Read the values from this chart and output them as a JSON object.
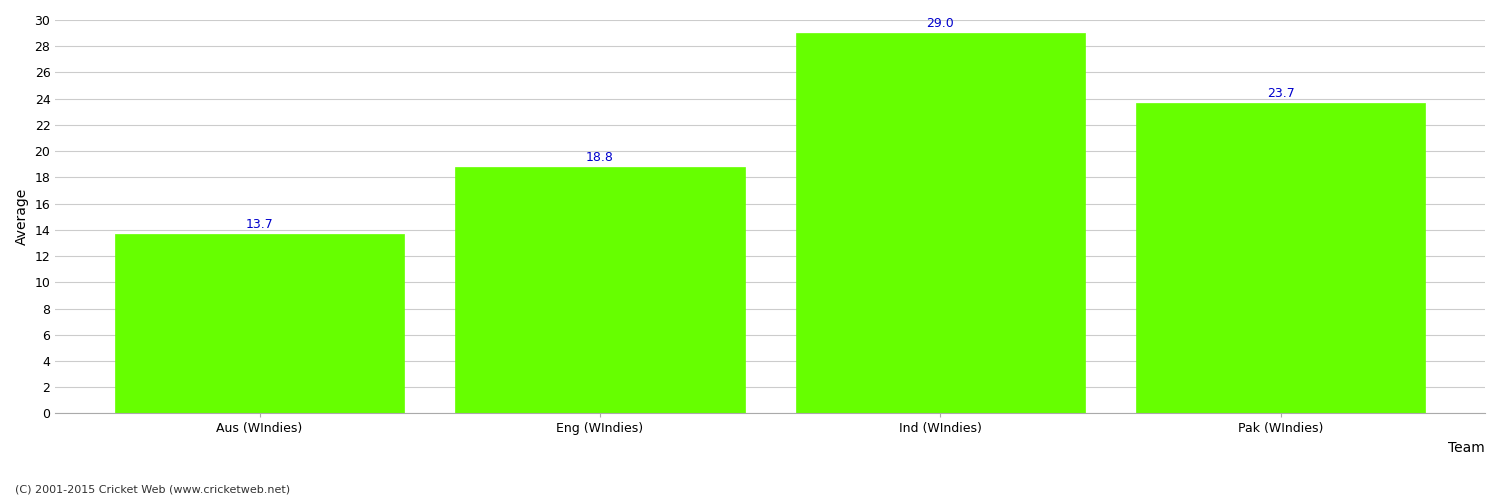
{
  "categories": [
    "Aus (WIndies)",
    "Eng (WIndies)",
    "Ind (WIndies)",
    "Pak (WIndies)"
  ],
  "values": [
    13.7,
    18.8,
    29.0,
    23.7
  ],
  "bar_color": "#66ff00",
  "bar_edge_color": "#66ff00",
  "value_color": "#0000cc",
  "xlabel": "Team",
  "ylabel": "Average",
  "ylim": [
    0,
    30
  ],
  "yticks": [
    0,
    2,
    4,
    6,
    8,
    10,
    12,
    14,
    16,
    18,
    20,
    22,
    24,
    26,
    28,
    30
  ],
  "grid_color": "#cccccc",
  "background_color": "#ffffff",
  "footer_text": "(C) 2001-2015 Cricket Web (www.cricketweb.net)",
  "value_fontsize": 9,
  "label_fontsize": 9,
  "axis_label_fontsize": 10
}
